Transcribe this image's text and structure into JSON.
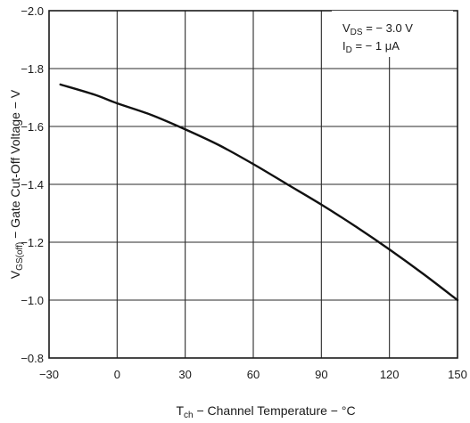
{
  "chart_data": {
    "type": "line",
    "title": "",
    "xlabel": {
      "symbol": "T",
      "subscript": "ch",
      "text": " − Channel Temperature − °C"
    },
    "ylabel": {
      "symbol": "V",
      "subscript": "GS(off)",
      "text": " − Gate Cut-Off Voltage − V"
    },
    "xlim": [
      -30,
      150
    ],
    "ylim": [
      -0.8,
      -2.0
    ],
    "x_ticks": [
      -30,
      0,
      30,
      60,
      90,
      120,
      150
    ],
    "x_tick_labels": [
      "−30",
      "0",
      "30",
      "60",
      "90",
      "120",
      "150"
    ],
    "y_ticks": [
      -2.0,
      -1.8,
      -1.6,
      -1.4,
      -1.2,
      -1.0,
      -0.8
    ],
    "y_tick_labels": [
      "−2.0",
      "−1.8",
      "−1.6",
      "−1.4",
      "−1.2",
      "−1.0",
      "−0.8"
    ],
    "grid": true,
    "conditions": [
      {
        "symbol": "V",
        "subscript": "DS",
        "text": " = − 3.0 V"
      },
      {
        "symbol": "I",
        "subscript": "D",
        "text": " = − 1 μA"
      }
    ],
    "series": [
      {
        "x": [
          -25,
          -10,
          0,
          15,
          30,
          45,
          60,
          75,
          90,
          105,
          120,
          135,
          150
        ],
        "y": [
          -1.745,
          -1.71,
          -1.68,
          -1.64,
          -1.59,
          -1.535,
          -1.47,
          -1.4,
          -1.33,
          -1.255,
          -1.175,
          -1.09,
          -1.0
        ]
      }
    ]
  }
}
